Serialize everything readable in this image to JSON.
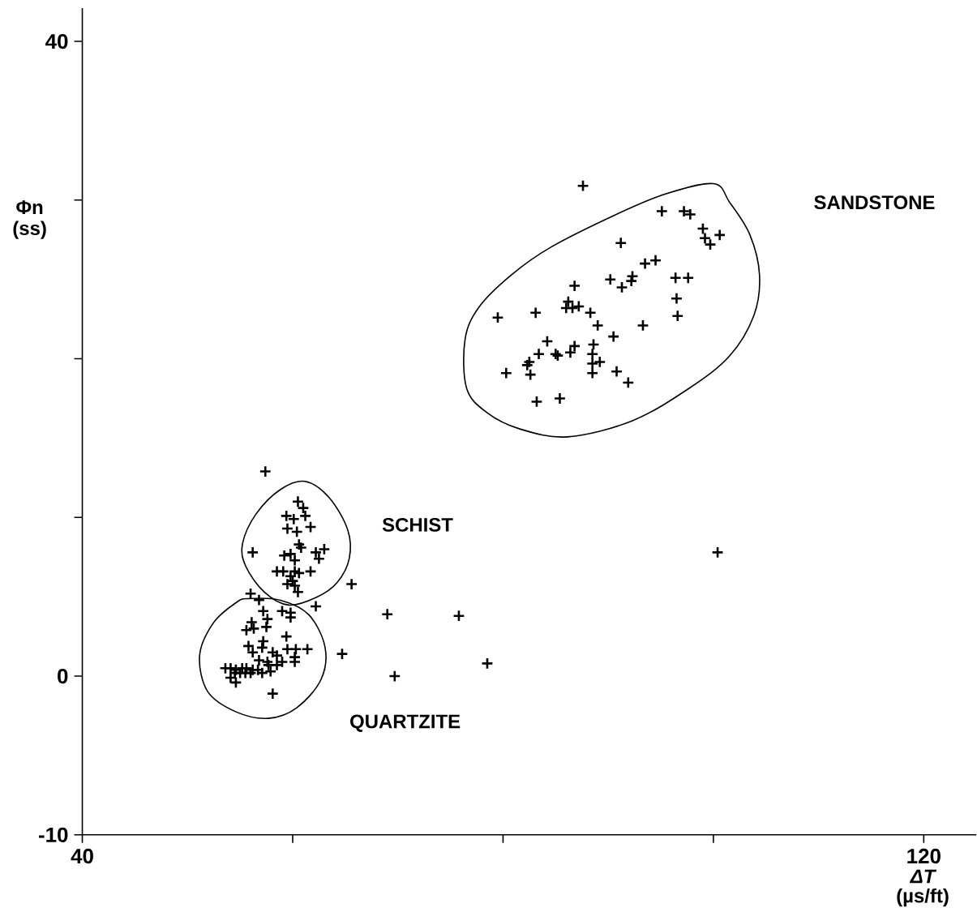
{
  "chart_data": {
    "type": "scatter",
    "xlabel": "*ΔT* (µs/ft)",
    "ylabel": "Φn (ss)",
    "xlim": [
      40,
      125
    ],
    "ylim": [
      -10,
      42.1
    ],
    "xticks": [
      40,
      {
        "value": 60,
        "label": null
      },
      {
        "value": 80,
        "label": null
      },
      {
        "value": 100,
        "label": null
      },
      120
    ],
    "yticks": [
      -10,
      0,
      {
        "value": 10,
        "label": null
      },
      {
        "value": 20,
        "label": null
      },
      {
        "value": 30,
        "label": null
      },
      40
    ],
    "series": [
      {
        "marker": "cross",
        "color": "#000000",
        "x": [
          87.6,
          95.1,
          97.2,
          97.8,
          99.0,
          100.6,
          99.2,
          99.7,
          91.2,
          93.5,
          94.5,
          96.4,
          97.6,
          90.2,
          91.3,
          92.3,
          92.2,
          86.8,
          86.2,
          86.0,
          86.6,
          87.2,
          96.5,
          96.6,
          83.1,
          79.5,
          88.3,
          89.0,
          93.3,
          90.5,
          84.2,
          88.6,
          86.8,
          86.4,
          83.4,
          85.0,
          85.2,
          88.5,
          89.2,
          88.5,
          82.5,
          82.3,
          80.3,
          82.6,
          88.5,
          90.8,
          91.9,
          83.2,
          85.4,
          65.6,
          69.0,
          75.8,
          64.7,
          69.7,
          78.5,
          100.4,
          57.4,
          60.5,
          61.0,
          61.2,
          59.4,
          60.1,
          59.5,
          60.4,
          61.7,
          60.6,
          60.8,
          56.2,
          59.2,
          59.8,
          60.2,
          62.2,
          63.0,
          62.5,
          58.5,
          59.1,
          60.2,
          60.6,
          61.7,
          59.8,
          59.5,
          60.0,
          60.2,
          60.5,
          62.2,
          56.0,
          56.8,
          57.2,
          57.6,
          59.0,
          59.8,
          59.8,
          56.1,
          57.5,
          55.6,
          56.3,
          59.4,
          55.8,
          57.2,
          57.1,
          56.2,
          58.1,
          58.5,
          59.5,
          60.3,
          61.4,
          60.2,
          59.0,
          60.2,
          53.6,
          54.1,
          54.6,
          55.2,
          55.6,
          56.2,
          54.5,
          55.0,
          55.5,
          56.0,
          56.7,
          57.1,
          57.7,
          57.9,
          58.5,
          54.6,
          54.1,
          58.1,
          56.8,
          57.6
        ],
        "values": [
          30.9,
          29.3,
          29.3,
          29.1,
          28.2,
          27.8,
          27.6,
          27.2,
          27.3,
          26.0,
          26.2,
          25.1,
          25.1,
          25.0,
          24.5,
          25.2,
          24.9,
          24.6,
          23.6,
          23.2,
          23.2,
          23.3,
          23.8,
          22.7,
          22.9,
          22.6,
          22.9,
          22.1,
          22.1,
          21.4,
          21.1,
          20.9,
          20.8,
          20.4,
          20.3,
          20.3,
          20.2,
          20.3,
          19.8,
          19.7,
          19.8,
          19.6,
          19.1,
          19.0,
          19.1,
          19.2,
          18.5,
          17.3,
          17.5,
          5.8,
          3.9,
          3.8,
          1.4,
          0.0,
          0.8,
          7.8,
          12.9,
          11.0,
          10.6,
          10.1,
          10.1,
          9.9,
          9.3,
          9.1,
          9.4,
          8.3,
          8.1,
          7.8,
          7.6,
          7.7,
          7.3,
          7.8,
          8.0,
          7.4,
          6.6,
          6.6,
          6.6,
          6.5,
          6.6,
          6.3,
          5.8,
          6.0,
          5.7,
          5.3,
          4.4,
          5.2,
          4.8,
          4.1,
          3.6,
          4.1,
          4.0,
          3.7,
          3.4,
          3.1,
          2.9,
          3.0,
          2.5,
          1.9,
          2.2,
          1.8,
          1.5,
          1.5,
          1.3,
          1.7,
          1.7,
          1.7,
          1.2,
          0.9,
          0.9,
          0.5,
          0.5,
          0.4,
          0.5,
          0.5,
          0.4,
          0.2,
          0.2,
          0.2,
          0.2,
          0.4,
          0.2,
          0.7,
          0.3,
          0.7,
          -0.4,
          -0.1,
          -1.1,
          1.0,
          0.9
        ]
      }
    ],
    "annotations": [
      "SANDSTONE",
      "SCHIST",
      "QUARTZITE"
    ]
  }
}
